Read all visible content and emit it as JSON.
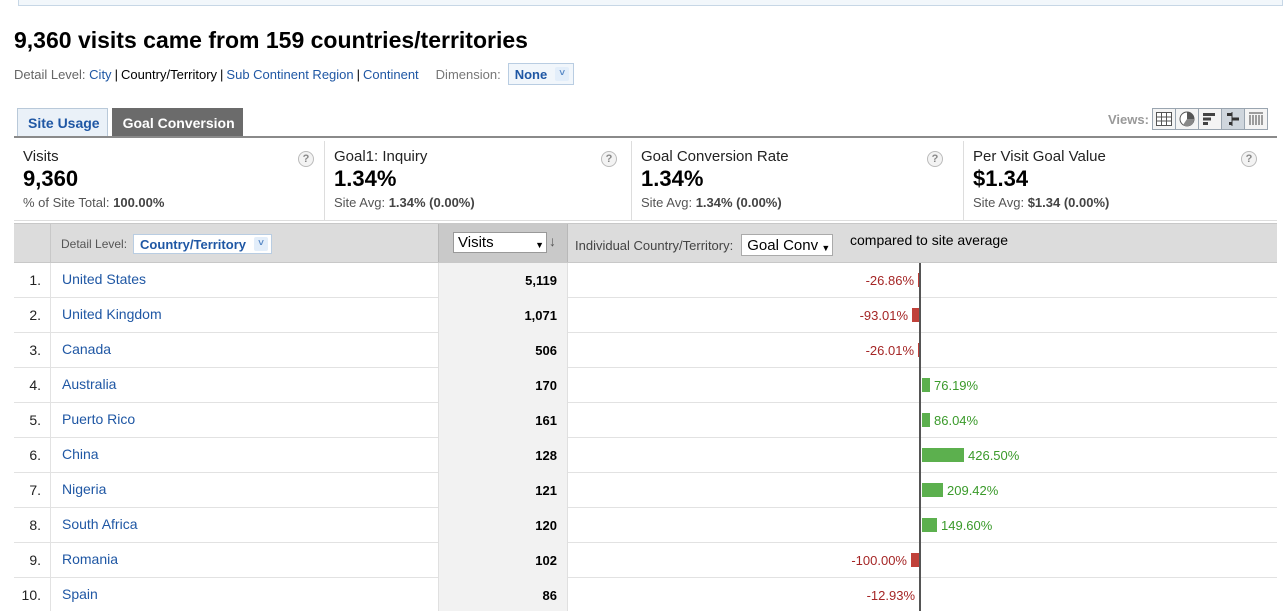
{
  "title": "9,360 visits came from 159 countries/territories",
  "detail_level": {
    "label": "Detail Level:",
    "options": [
      {
        "label": "City",
        "current": false
      },
      {
        "label": "Country/Territory",
        "current": true
      },
      {
        "label": "Sub Continent Region",
        "current": false
      },
      {
        "label": "Continent",
        "current": false
      }
    ],
    "dimension_label": "Dimension:",
    "dimension_value": "None"
  },
  "tabs": [
    {
      "label": "Site Usage",
      "active": false
    },
    {
      "label": "Goal Conversion",
      "active": true
    }
  ],
  "views_label": "Views:",
  "views_icons": [
    "table-view-icon",
    "pie-view-icon",
    "performance-view-icon",
    "comparison-view-icon",
    "pivot-view-icon"
  ],
  "metrics": [
    {
      "name": "Visits",
      "value": "9,360",
      "sub_label": "% of Site Total:",
      "sub_value": "100.00%"
    },
    {
      "name": "Goal1: Inquiry",
      "value": "1.34%",
      "sub_label": "Site Avg:",
      "sub_value": "1.34% (0.00%)"
    },
    {
      "name": "Goal Conversion Rate",
      "value": "1.34%",
      "sub_label": "Site Avg:",
      "sub_value": "1.34% (0.00%)"
    },
    {
      "name": "Per Visit Goal Value",
      "value": "$1.34",
      "sub_label": "Site Avg:",
      "sub_value": "$1.34 (0.00%)"
    }
  ],
  "help_glyph": "?",
  "table_header": {
    "detail_label": "Detail Level:",
    "detail_value": "Country/Territory",
    "visits_select": "Visits",
    "individual_label": "Individual Country/Territory:",
    "goal_select": "Goal Conv",
    "compared_text": "compared to site average"
  },
  "rows": [
    {
      "index": "1.",
      "country": "United States",
      "visits": "5,119",
      "change": -26.86,
      "change_label": "-26.86%"
    },
    {
      "index": "2.",
      "country": "United Kingdom",
      "visits": "1,071",
      "change": -93.01,
      "change_label": "-93.01%"
    },
    {
      "index": "3.",
      "country": "Canada",
      "visits": "506",
      "change": -26.01,
      "change_label": "-26.01%"
    },
    {
      "index": "4.",
      "country": "Australia",
      "visits": "170",
      "change": 76.19,
      "change_label": "76.19%"
    },
    {
      "index": "5.",
      "country": "Puerto Rico",
      "visits": "161",
      "change": 86.04,
      "change_label": "86.04%"
    },
    {
      "index": "6.",
      "country": "China",
      "visits": "128",
      "change": 426.5,
      "change_label": "426.50%"
    },
    {
      "index": "7.",
      "country": "Nigeria",
      "visits": "121",
      "change": 209.42,
      "change_label": "209.42%"
    },
    {
      "index": "8.",
      "country": "South Africa",
      "visits": "120",
      "change": 149.6,
      "change_label": "149.60%"
    },
    {
      "index": "9.",
      "country": "Romania",
      "visits": "102",
      "change": -100.0,
      "change_label": "-100.00%"
    },
    {
      "index": "10.",
      "country": "Spain",
      "visits": "86",
      "change": -12.93,
      "change_label": "-12.93%"
    }
  ],
  "colors": {
    "link": "#1f57a4",
    "negative": "#c0413a",
    "positive": "#5cb04e",
    "active_tab": "#6b6b6b"
  }
}
